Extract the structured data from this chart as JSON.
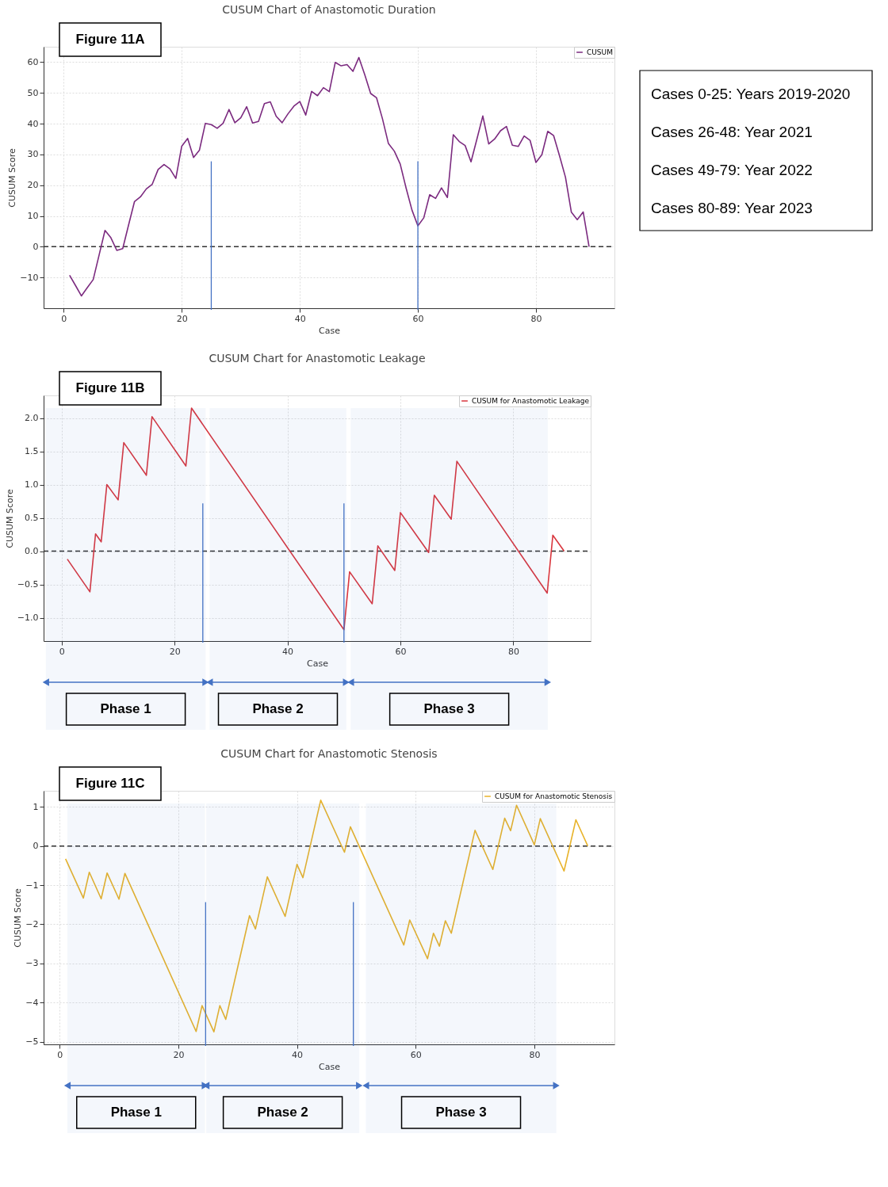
{
  "chart_data": [
    {
      "type": "line",
      "title": "CUSUM Chart of Anastomotic Duration",
      "xlabel": "Case",
      "ylabel": "CUSUM Score",
      "series": [
        {
          "name": "CUSUM",
          "color": "#7b2a7f",
          "x": [
            1,
            2,
            3,
            4,
            5,
            6,
            7,
            8,
            9,
            10,
            11,
            12,
            13,
            14,
            15,
            16,
            17,
            18,
            19,
            20,
            21,
            22,
            23,
            24,
            25,
            26,
            27,
            28,
            29,
            30,
            31,
            32,
            33,
            34,
            35,
            36,
            37,
            38,
            39,
            40,
            41,
            42,
            43,
            44,
            45,
            46,
            47,
            48,
            49,
            50,
            51,
            52,
            53,
            54,
            55,
            56,
            57,
            58,
            59,
            60,
            61,
            62,
            63,
            64,
            65,
            66,
            67,
            68,
            69,
            70,
            71,
            72,
            73,
            74,
            75,
            76,
            77,
            78,
            79,
            80,
            81,
            82,
            83,
            84,
            85,
            86,
            87,
            88,
            89
          ],
          "values": [
            -9.3,
            -12.6,
            -16,
            -13.3,
            -10.7,
            -2.7,
            5.3,
            2.9,
            -1.2,
            -0.6,
            7.1,
            14.7,
            16.2,
            18.8,
            20.3,
            25.1,
            26.7,
            25.3,
            22.2,
            32.7,
            35.2,
            29,
            31.4,
            40.1,
            39.7,
            38.5,
            40.1,
            44.6,
            40.3,
            41.9,
            45.5,
            40.2,
            40.7,
            46.5,
            47.1,
            42.4,
            40.3,
            43.2,
            45.7,
            47.2,
            42.8,
            50.5,
            49.1,
            51.7,
            50.4,
            59.9,
            58.8,
            59.2,
            57,
            61.5,
            55.9,
            49.8,
            48.4,
            41.6,
            33.6,
            31.1,
            26.9,
            19.1,
            11.9,
            6.8,
            9.4,
            16.9,
            15.7,
            19.1,
            16,
            36.4,
            34.2,
            32.9,
            27.6,
            35,
            42.5,
            33.4,
            35,
            37.7,
            39.1,
            33,
            32.6,
            36,
            34.6,
            27.4,
            29.9,
            37.5,
            36.1,
            29.5,
            22.6,
            11.2,
            8.8,
            11.3,
            0
          ]
        }
      ],
      "xlim": [
        -3.4,
        93.3
      ],
      "ylim": [
        -20,
        65
      ],
      "xticks": [
        0,
        20,
        40,
        60,
        80
      ],
      "yticks": [
        -10,
        0,
        10,
        20,
        30,
        40,
        50,
        60
      ],
      "grid": true,
      "legend": "top right",
      "ref_lines": [
        {
          "axis": "y",
          "value": 0,
          "color": "#333333",
          "line_style": "dashed"
        },
        {
          "axis": "x",
          "value": 25,
          "color": "#4472c4",
          "line_style": "solid"
        },
        {
          "axis": "x",
          "value": 60,
          "color": "#4472c4",
          "line_style": "solid"
        }
      ],
      "annotations": [
        "Figure 11A",
        "Cases 0-25: Years 2019-2020",
        "Cases 26-48: Year 2021",
        "Cases 49-79: Year 2022",
        "Cases 80-89: Year 2023"
      ]
    },
    {
      "type": "line",
      "title": "CUSUM Chart for Anastomotic Leakage",
      "xlabel": "Case",
      "ylabel": "CUSUM Score",
      "series": [
        {
          "name": "CUSUM for Anastomotic Leakage",
          "color": "#d9363e",
          "x": [
            1,
            5,
            6,
            7,
            8,
            10,
            11,
            15,
            16,
            22,
            23,
            50,
            51,
            55,
            56,
            59,
            60,
            65,
            66,
            69,
            70,
            86,
            87,
            89
          ],
          "values": [
            -0.12,
            -0.61,
            0.26,
            0.14,
            1.0,
            0.77,
            1.63,
            1.14,
            2.02,
            1.28,
            2.15,
            -1.18,
            -0.31,
            -0.79,
            0.08,
            -0.29,
            0.58,
            -0.02,
            0.84,
            0.48,
            1.35,
            -0.63,
            0.24,
            0
          ]
        }
      ],
      "xlim": [
        -3.2,
        93.7
      ],
      "ylim": [
        -1.35,
        2.34
      ],
      "xticks": [
        0,
        20,
        40,
        60,
        80
      ],
      "yticks": [
        {
          "value": -1,
          "label": "−1.0"
        },
        {
          "value": -0.5,
          "label": "−0.5"
        },
        {
          "value": 0,
          "label": "0.0"
        },
        {
          "value": 0.5,
          "label": "0.5"
        },
        {
          "value": 1,
          "label": "1.0"
        },
        {
          "value": 1.5,
          "label": "1.5"
        },
        {
          "value": 2,
          "label": "2.0"
        }
      ],
      "grid": true,
      "legend": "top right",
      "ref_lines": [
        {
          "axis": "y",
          "value": 0,
          "color": "#333333",
          "line_style": "dashed"
        },
        {
          "axis": "x",
          "value": 25,
          "color": "#4472c4",
          "line_style": "solid"
        },
        {
          "axis": "x",
          "value": 50,
          "color": "#4472c4",
          "line_style": "solid"
        }
      ],
      "bands": [
        {
          "axis": "x",
          "from": -2.8,
          "to": 25.5,
          "label": "Phase 1",
          "color": "#4472c4"
        },
        {
          "axis": "x",
          "from": 26.2,
          "to": 50.4,
          "label": "Phase 2",
          "color": "#4472c4"
        },
        {
          "axis": "x",
          "from": 51.2,
          "to": 86.1,
          "label": "Phase 3",
          "color": "#4472c4"
        }
      ],
      "annotations": [
        "Figure 11B"
      ]
    },
    {
      "type": "line",
      "title": "CUSUM Chart for Anastomotic Stenosis",
      "xlabel": "Case",
      "ylabel": "CUSUM Score",
      "series": [
        {
          "name": "CUSUM for Anastomotic Stenosis",
          "color": "#e8b32a",
          "x": [
            1,
            4,
            5,
            7,
            8,
            10,
            11,
            23,
            24,
            26,
            27,
            28,
            32,
            33,
            35,
            38,
            40,
            41,
            44,
            48,
            49,
            58,
            59,
            62,
            63,
            64,
            65,
            66,
            70,
            73,
            75,
            76,
            77,
            80,
            81,
            85,
            87,
            89
          ],
          "values": [
            -0.33,
            -1.33,
            -0.67,
            -1.35,
            -0.69,
            -1.36,
            -0.7,
            -4.74,
            -4.08,
            -4.75,
            -4.08,
            -4.43,
            -1.78,
            -2.12,
            -0.79,
            -1.8,
            -0.47,
            -0.81,
            1.17,
            -0.16,
            0.49,
            -2.53,
            -1.89,
            -2.88,
            -2.23,
            -2.56,
            -1.91,
            -2.23,
            0.4,
            -0.6,
            0.71,
            0.39,
            1.04,
            0.03,
            0.7,
            -0.64,
            0.67,
            0
          ]
        }
      ],
      "xlim": [
        -2.7,
        93.5
      ],
      "ylim": [
        -5.07,
        1.41
      ],
      "xticks": [
        0,
        20,
        40,
        60,
        80
      ],
      "yticks": [
        -5,
        -4,
        -3,
        -2,
        -1,
        0,
        1
      ],
      "grid": true,
      "legend": "top right",
      "ref_lines": [
        {
          "axis": "y",
          "value": 0,
          "color": "#333333",
          "line_style": "dashed"
        },
        {
          "axis": "x",
          "value": 24.6,
          "color": "#4472c4",
          "line_style": "solid"
        },
        {
          "axis": "x",
          "value": 49.5,
          "color": "#4472c4",
          "line_style": "solid"
        }
      ],
      "bands": [
        {
          "axis": "x",
          "from": 1.3,
          "to": 24.5,
          "label": "Phase 1",
          "color": "#4472c4"
        },
        {
          "axis": "x",
          "from": 24.7,
          "to": 50.5,
          "label": "Phase 2",
          "color": "#4472c4"
        },
        {
          "axis": "x",
          "from": 51.6,
          "to": 83.7,
          "label": "Phase 3",
          "color": "#4472c4"
        }
      ],
      "annotations": [
        "Figure 11C"
      ]
    }
  ]
}
